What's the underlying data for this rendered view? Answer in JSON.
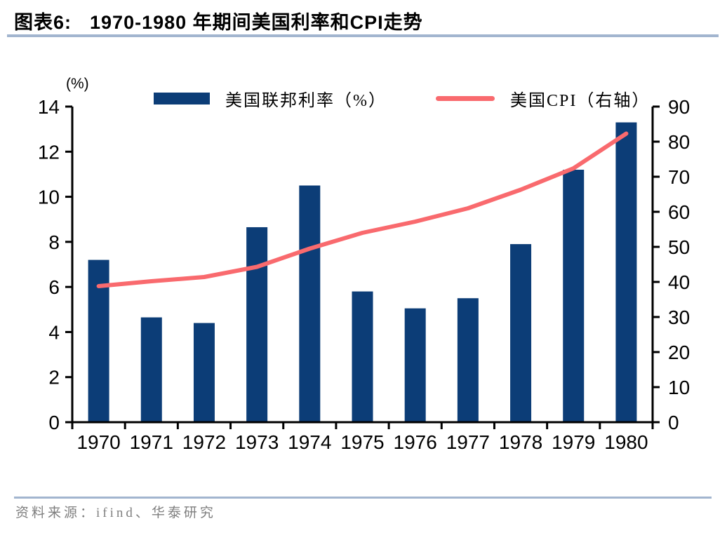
{
  "header": {
    "tag": "图表6:",
    "title": "1970-1980 年期间美国利率和CPI走势"
  },
  "legend": [
    {
      "label": "美国联邦利率（%）"
    },
    {
      "label": "美国CPI（右轴）"
    }
  ],
  "footer": {
    "source": "资料来源：ifind、华泰研究"
  },
  "chart_data": {
    "type": "bar+line",
    "title": "1970-1980 年期间美国利率和CPI走势",
    "categories": [
      "1970",
      "1971",
      "1972",
      "1973",
      "1974",
      "1975",
      "1976",
      "1977",
      "1978",
      "1979",
      "1980"
    ],
    "series": [
      {
        "name": "美国联邦利率（%）",
        "type": "bar",
        "axis": "left",
        "color": "#0c3d77",
        "values": [
          7.2,
          4.65,
          4.4,
          8.65,
          10.5,
          5.8,
          5.05,
          5.5,
          7.9,
          11.2,
          13.3
        ]
      },
      {
        "name": "美国CPI（右轴）",
        "type": "line",
        "axis": "right",
        "color": "#f96a6e",
        "values": [
          38.8,
          40.2,
          41.4,
          44.3,
          49.5,
          54.0,
          57.2,
          61.0,
          66.3,
          72.4,
          82.3
        ]
      }
    ],
    "y_left": {
      "unit_label": "(%)",
      "min": 0,
      "max": 14,
      "ticks": [
        0,
        2,
        4,
        6,
        8,
        10,
        12,
        14
      ]
    },
    "y_right": {
      "min": 0,
      "max": 90,
      "ticks": [
        0,
        10,
        20,
        30,
        40,
        50,
        60,
        70,
        80,
        90
      ]
    },
    "grid": false,
    "legend_position": "top"
  }
}
